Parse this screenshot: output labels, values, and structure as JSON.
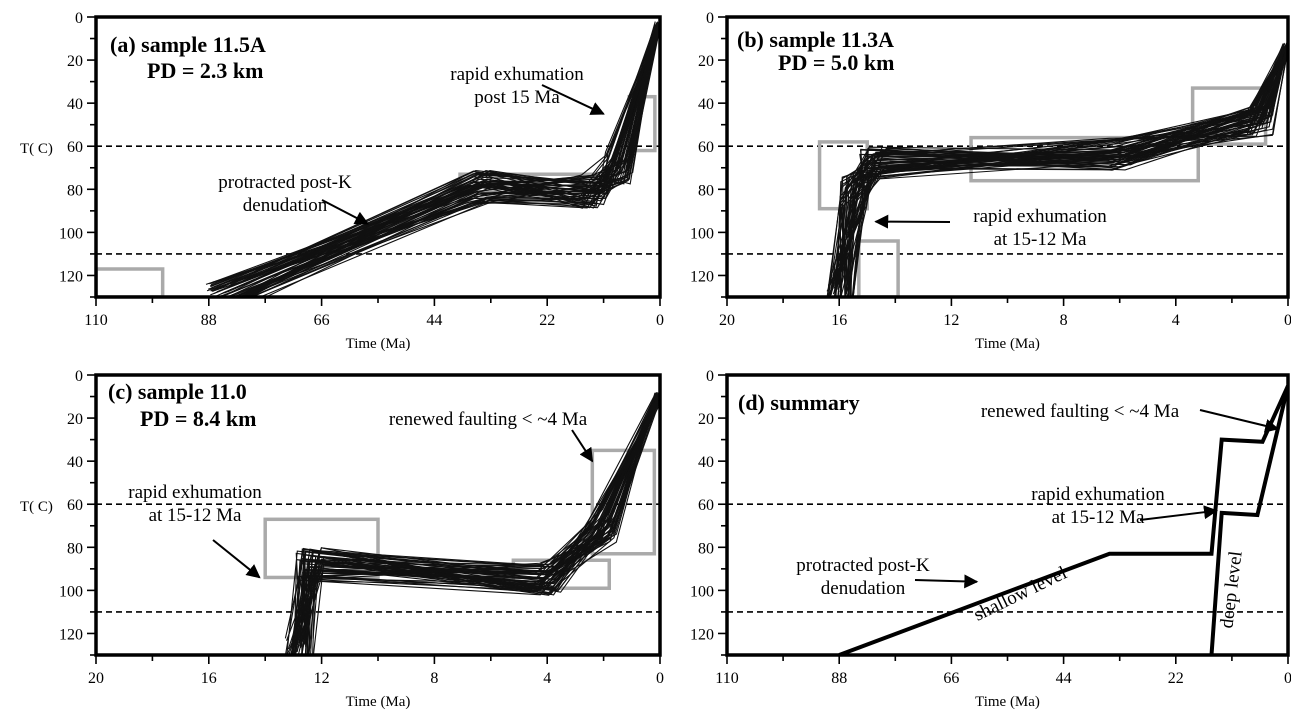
{
  "chart_data": [
    {
      "type": "line",
      "panel": "a",
      "title": "(a) sample 11.5A",
      "subtitle": "PD = 2.3 km",
      "xlabel": "Time (Ma)",
      "ylabel": "T( C)",
      "xlim": [
        110,
        0
      ],
      "ylim": [
        0,
        130
      ],
      "x_ticks": [
        "110",
        "88",
        "66",
        "44",
        "22",
        "0"
      ],
      "y_ticks": [
        "0",
        "20",
        "40",
        "60",
        "80",
        "100",
        "120"
      ],
      "reference_lines_y": [
        60,
        110
      ],
      "annotations": [
        {
          "lines": [
            "rapid exhumation",
            "post  15 Ma"
          ],
          "arrow_to": [
            11,
            45
          ]
        },
        {
          "lines": [
            "protracted post-K",
            "denudation"
          ],
          "arrow_to": [
            57,
            96
          ]
        }
      ],
      "constraint_boxes": [
        {
          "x": [
            110,
            97
          ],
          "y": [
            117,
            130
          ]
        },
        {
          "x": [
            39,
            13
          ],
          "y": [
            73,
            86
          ]
        },
        {
          "x": [
            6,
            1
          ],
          "y": [
            37,
            62
          ]
        }
      ],
      "path_bundle": {
        "count": 60,
        "median_path": [
          [
            86,
            130
          ],
          [
            35,
            79
          ],
          [
            13,
            81
          ],
          [
            8,
            70
          ],
          [
            0,
            2
          ]
        ]
      }
    },
    {
      "type": "line",
      "panel": "b",
      "title": "(b) sample 11.3A",
      "subtitle": "PD = 5.0 km",
      "xlabel": "Time (Ma)",
      "ylabel": "",
      "xlim": [
        20,
        0
      ],
      "ylim": [
        0,
        130
      ],
      "x_ticks": [
        "20",
        "16",
        "12",
        "8",
        "4",
        "0"
      ],
      "y_ticks": [
        "0",
        "20",
        "40",
        "60",
        "80",
        "100",
        "120"
      ],
      "reference_lines_y": [
        60,
        110
      ],
      "annotations": [
        {
          "lines": [
            "rapid exhumation",
            "at 15-12 Ma"
          ],
          "arrow_to": [
            14.7,
            95
          ]
        }
      ],
      "constraint_boxes": [
        {
          "x": [
            16.7,
            15.0
          ],
          "y": [
            58,
            89
          ]
        },
        {
          "x": [
            15.3,
            13.9
          ],
          "y": [
            104,
            130
          ]
        },
        {
          "x": [
            11.3,
            3.2
          ],
          "y": [
            56,
            76
          ]
        },
        {
          "x": [
            3.4,
            0.8
          ],
          "y": [
            33,
            59
          ]
        }
      ],
      "path_bundle": {
        "count": 60,
        "median_path": [
          [
            16.0,
            130
          ],
          [
            15.5,
            82
          ],
          [
            14.8,
            68
          ],
          [
            6,
            64
          ],
          [
            1,
            48
          ],
          [
            0,
            12
          ]
        ]
      }
    },
    {
      "type": "line",
      "panel": "c",
      "title": "(c) sample 11.0",
      "subtitle": "PD = 8.4 km",
      "xlabel": "Time (Ma)",
      "ylabel": "T( C)",
      "xlim": [
        20,
        0
      ],
      "ylim": [
        0,
        130
      ],
      "x_ticks": [
        "20",
        "16",
        "12",
        "8",
        "4",
        "0"
      ],
      "y_ticks": [
        "0",
        "20",
        "40",
        "60",
        "80",
        "100",
        "120"
      ],
      "reference_lines_y": [
        60,
        110
      ],
      "annotations": [
        {
          "lines": [
            "renewed faulting < ~4 Ma"
          ],
          "arrow_to": [
            2.4,
            40
          ]
        },
        {
          "lines": [
            "rapid exhumation",
            "at 15-12 Ma"
          ],
          "arrow_to": [
            14.2,
            94
          ]
        }
      ],
      "constraint_boxes": [
        {
          "x": [
            14.0,
            10.0
          ],
          "y": [
            67,
            94
          ]
        },
        {
          "x": [
            5.2,
            1.8
          ],
          "y": [
            86,
            99
          ]
        },
        {
          "x": [
            2.4,
            0.2
          ],
          "y": [
            35,
            83
          ]
        }
      ],
      "path_bundle": {
        "count": 60,
        "median_path": [
          [
            12.8,
            130
          ],
          [
            12.4,
            88
          ],
          [
            4,
            95
          ],
          [
            2,
            70
          ],
          [
            0,
            8
          ]
        ]
      }
    },
    {
      "type": "line",
      "panel": "d",
      "title": "(d) summary",
      "subtitle": "",
      "xlabel": "Time (Ma)",
      "ylabel": "",
      "xlim": [
        110,
        0
      ],
      "ylim": [
        0,
        130
      ],
      "x_ticks": [
        "110",
        "88",
        "66",
        "44",
        "22",
        "0"
      ],
      "y_ticks": [
        "0",
        "20",
        "40",
        "60",
        "80",
        "100",
        "120"
      ],
      "reference_lines_y": [
        60,
        110
      ],
      "annotations": [
        {
          "lines": [
            "renewed faulting < ~4 Ma"
          ],
          "arrow_to": [
            2,
            25
          ]
        },
        {
          "lines": [
            "rapid exhumation",
            "at 15-12 Ma"
          ],
          "arrow_to": [
            14,
            63
          ]
        },
        {
          "lines": [
            "protracted post-K",
            "denudation"
          ],
          "arrow_to": [
            61,
            96
          ]
        }
      ],
      "series": [
        {
          "name": "shallow level",
          "points": [
            [
              88,
              130
            ],
            [
              35,
              83
            ],
            [
              15,
              83
            ],
            [
              13,
              30
            ],
            [
              5,
              31
            ],
            [
              0,
              5
            ]
          ]
        },
        {
          "name": "deep level",
          "points": [
            [
              15,
              130
            ],
            [
              13,
              64
            ],
            [
              6,
              65
            ],
            [
              0,
              5
            ]
          ]
        }
      ]
    }
  ]
}
